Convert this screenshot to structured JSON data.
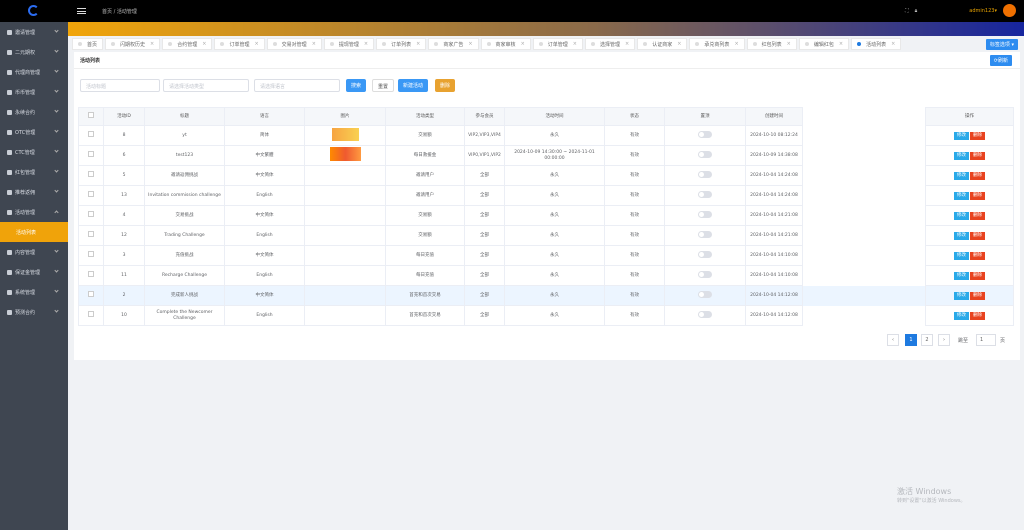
{
  "header": {
    "breadcrumb": [
      "首页",
      "/",
      "活动管理"
    ],
    "user": "admin123▾",
    "accent": "#f0a30a"
  },
  "sidebar": {
    "items": [
      {
        "label": "邀请管理",
        "icon": "share-icon"
      },
      {
        "label": "二元期权",
        "icon": "chart-icon"
      },
      {
        "label": "代理商管理",
        "icon": "users-icon"
      },
      {
        "label": "币币管理",
        "icon": "exchange-icon"
      },
      {
        "label": "永续合约",
        "icon": "contract-icon"
      },
      {
        "label": "OTC管理",
        "icon": "briefcase-icon"
      },
      {
        "label": "CTC管理",
        "icon": "transfer-icon"
      },
      {
        "label": "红包管理",
        "icon": "gift-icon"
      },
      {
        "label": "推荐返佣",
        "icon": "rebate-icon"
      },
      {
        "label": "活动管理",
        "icon": "gear-icon",
        "open": true
      },
      {
        "label": "活动列表",
        "sub": true
      },
      {
        "label": "内容管理",
        "icon": "folder-icon"
      },
      {
        "label": "保证金管理",
        "icon": "card-icon"
      },
      {
        "label": "系统管理",
        "icon": "settings-icon"
      },
      {
        "label": "预测合约",
        "icon": "forecast-icon"
      }
    ]
  },
  "tabs": [
    "首页",
    "闪期权历史",
    "合约管理",
    "订单管理",
    "交易对管理",
    "提现管理",
    "订单列表",
    "商家广告",
    "商家审核",
    "订单管理",
    "选择管理",
    "认证商家",
    "承兑商列表",
    "红包列表",
    "编辑红包",
    "活动列表"
  ],
  "tab_options": "标签选项 ▾",
  "card": {
    "title": "活动列表",
    "refresh": "⟳刷新"
  },
  "filters": {
    "title_ph": "活动标题",
    "type_ph": "请选择活动类型",
    "lang_ph": "请选择语言",
    "search": "搜索",
    "reset": "重置",
    "add": "新建活动",
    "delete": "删除"
  },
  "table": {
    "headers": [
      "",
      "活动ID",
      "标题",
      "语言",
      "图片",
      "活动类型",
      "参与会员",
      "活动时间",
      "状态",
      "置顶",
      "创建时间",
      "",
      "操作"
    ],
    "edit": "修改",
    "del": "删除",
    "rows": [
      {
        "id": "8",
        "title": "yt",
        "lang": "简体",
        "img": 1,
        "type": "交易额",
        "members": "VIP2,VIP3,VIP4",
        "time": "永久",
        "status": "有效",
        "created": "2024-10-10 08:12:24"
      },
      {
        "id": "6",
        "title": "test123",
        "lang": "中文繁體",
        "img": 2,
        "type": "每日救援金",
        "members": "VIP0,VIP1,VIP2",
        "time": "2024-10-09 14:30:00 ~ 2024-11-01 00:00:00",
        "status": "有效",
        "created": "2024-10-09 14:38:08"
      },
      {
        "id": "5",
        "title": "邀请返佣挑战",
        "lang": "中文简体",
        "type": "邀请用户",
        "members": "全部",
        "time": "永久",
        "status": "有效",
        "created": "2024-10-04 14:24:08"
      },
      {
        "id": "13",
        "title": "Invitation commission challenge",
        "lang": "English",
        "type": "邀请用户",
        "members": "全部",
        "time": "永久",
        "status": "有效",
        "created": "2024-10-04 14:24:08"
      },
      {
        "id": "4",
        "title": "交易挑战",
        "lang": "中文简体",
        "type": "交易额",
        "members": "全部",
        "time": "永久",
        "status": "有效",
        "created": "2024-10-04 14:21:08"
      },
      {
        "id": "12",
        "title": "Trading Challenge",
        "lang": "English",
        "type": "交易额",
        "members": "全部",
        "time": "永久",
        "status": "有效",
        "created": "2024-10-04 14:21:08"
      },
      {
        "id": "3",
        "title": "充值挑战",
        "lang": "中文简体",
        "type": "每日充值",
        "members": "全部",
        "time": "永久",
        "status": "有效",
        "created": "2024-10-04 14:10:08"
      },
      {
        "id": "11",
        "title": "Recharge Challenge",
        "lang": "English",
        "type": "每日充值",
        "members": "全部",
        "time": "永久",
        "status": "有效",
        "created": "2024-10-04 14:10:08"
      },
      {
        "id": "2",
        "title": "完成新人挑战",
        "lang": "中文简体",
        "type": "首充和首次交易",
        "members": "全部",
        "time": "永久",
        "status": "有效",
        "created": "2024-10-04 14:12:08",
        "hl": true
      },
      {
        "id": "10",
        "title": "Complete the Newcomer Challenge",
        "lang": "English",
        "type": "首充和首次交易",
        "members": "全部",
        "time": "永久",
        "status": "有效",
        "created": "2024-10-04 14:12:08"
      }
    ]
  },
  "pagination": {
    "prev": "‹",
    "pages": [
      "1",
      "2"
    ],
    "current": "1",
    "next": "›",
    "goto": "跳至",
    "goto_value": "1",
    "unit": "页"
  },
  "watermark": {
    "title": "激活 Windows",
    "sub": "转到\"设置\"以激活 Windows。"
  }
}
